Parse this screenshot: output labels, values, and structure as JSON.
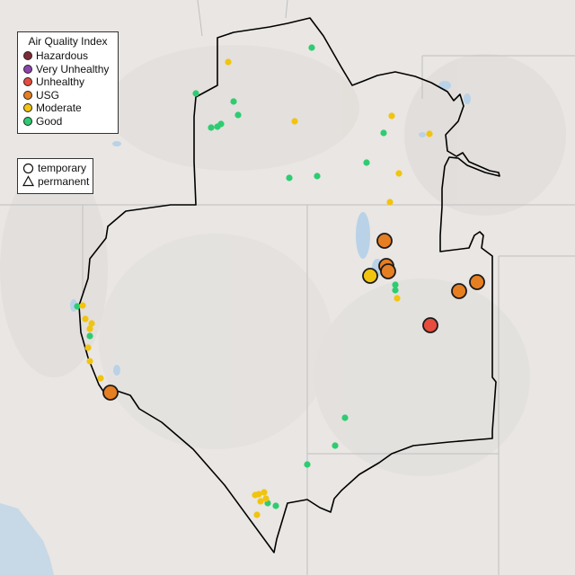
{
  "legend": {
    "title": "Air Quality Index",
    "items": [
      {
        "label": "Hazardous",
        "color": "#7e2b35",
        "key": "hazardous"
      },
      {
        "label": "Very Unhealthy",
        "color": "#8e44ad",
        "key": "very-unhealthy"
      },
      {
        "label": "Unhealthy",
        "color": "#e74c3c",
        "key": "unhealthy"
      },
      {
        "label": "USG",
        "color": "#e67e22",
        "key": "usg"
      },
      {
        "label": "Moderate",
        "color": "#f1c40f",
        "key": "moderate"
      },
      {
        "label": "Good",
        "color": "#2ecc71",
        "key": "good"
      }
    ]
  },
  "shape_legend": {
    "items": [
      {
        "label": "temporary",
        "shape": "circle-outline-icon"
      },
      {
        "label": "permanent",
        "shape": "triangle-outline-icon"
      }
    ]
  },
  "colors": {
    "land": "#e9e6e3",
    "ocean": "#c7d8e6",
    "water": "#b9d2e8",
    "state_border": "#c0c0c0",
    "region_border": "#000000"
  },
  "sites": [
    {
      "category": "good",
      "size": "small"
    },
    {
      "category": "good",
      "size": "small"
    },
    {
      "category": "good",
      "size": "small"
    },
    {
      "category": "good",
      "size": "small"
    },
    {
      "category": "good",
      "size": "small"
    },
    {
      "category": "good",
      "size": "small"
    },
    {
      "category": "good",
      "size": "small"
    },
    {
      "category": "good",
      "size": "small"
    },
    {
      "category": "good",
      "size": "small"
    },
    {
      "category": "good",
      "size": "small"
    },
    {
      "category": "good",
      "size": "small"
    },
    {
      "category": "good",
      "size": "small"
    },
    {
      "category": "good",
      "size": "small"
    },
    {
      "category": "good",
      "size": "small"
    },
    {
      "category": "good",
      "size": "small"
    },
    {
      "category": "good",
      "size": "small"
    },
    {
      "category": "good",
      "size": "small"
    },
    {
      "category": "good",
      "size": "small"
    },
    {
      "category": "good",
      "size": "small"
    },
    {
      "category": "good",
      "size": "small"
    },
    {
      "category": "moderate",
      "size": "small"
    },
    {
      "category": "moderate",
      "size": "small"
    },
    {
      "category": "moderate",
      "size": "small"
    },
    {
      "category": "moderate",
      "size": "small"
    },
    {
      "category": "moderate",
      "size": "small"
    },
    {
      "category": "moderate",
      "size": "small"
    },
    {
      "category": "moderate",
      "size": "small"
    },
    {
      "category": "moderate",
      "size": "small"
    },
    {
      "category": "moderate",
      "size": "small"
    },
    {
      "category": "moderate",
      "size": "small"
    },
    {
      "category": "moderate",
      "size": "small"
    },
    {
      "category": "moderate",
      "size": "small"
    },
    {
      "category": "moderate",
      "size": "small"
    },
    {
      "category": "moderate",
      "size": "small"
    },
    {
      "category": "moderate",
      "size": "small"
    },
    {
      "category": "moderate",
      "size": "small"
    },
    {
      "category": "moderate",
      "size": "small"
    },
    {
      "category": "moderate",
      "size": "small"
    },
    {
      "category": "moderate",
      "size": "small"
    },
    {
      "category": "moderate",
      "size": "small"
    },
    {
      "category": "moderate",
      "size": "large"
    },
    {
      "category": "usg",
      "size": "large"
    },
    {
      "category": "usg",
      "size": "large"
    },
    {
      "category": "usg",
      "size": "large"
    },
    {
      "category": "usg",
      "size": "large"
    },
    {
      "category": "usg",
      "size": "large"
    },
    {
      "category": "usg",
      "size": "large"
    },
    {
      "category": "unhealthy",
      "size": "large"
    }
  ]
}
